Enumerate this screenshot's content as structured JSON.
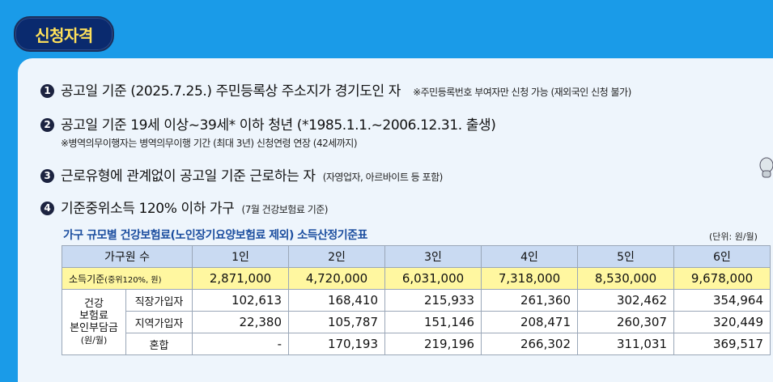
{
  "badge": "신청자격",
  "items": [
    {
      "num": "1",
      "text": "공고일 기준 (2025.7.25.) 주민등록상 주소지가 경기도인 자",
      "note": "※주민등록번호 부여자만 신청 가능 (재외국인 신청 불가)"
    },
    {
      "num": "2",
      "text": "공고일 기준 19세 이상~39세* 이하 청년 (*1985.1.1.~2006.12.31. 출생)",
      "sub": "※병역의무이행자는 병역의무이행 기간 (최대 3년) 신청연령 연장 (42세까지)"
    },
    {
      "num": "3",
      "text": "근로유형에 관계없이 공고일 기준 근로하는 자",
      "note": "(자영업자, 아르바이트 등 포함)"
    },
    {
      "num": "4",
      "text": "기준중위소득 120% 이하 가구",
      "note": "(7월 건강보험료 기준)"
    }
  ],
  "table": {
    "title": "가구 규모별 건강보험료(노인장기요양보험료 제외) 소득산정기준표",
    "unit": "(단위: 원/월)",
    "header": [
      "가구원 수",
      "1인",
      "2인",
      "3인",
      "4인",
      "5인",
      "6인"
    ],
    "income": {
      "label": "소득기준",
      "label_small": "(중위120%, 원)",
      "values": [
        "2,871,000",
        "4,720,000",
        "6,031,000",
        "7,318,000",
        "8,530,000",
        "9,678,000"
      ]
    },
    "group_label": [
      "건강",
      "보험료",
      "본인부담금"
    ],
    "group_unit": "(원/월)",
    "rows": [
      {
        "label": "직장가입자",
        "values": [
          "102,613",
          "168,410",
          "215,933",
          "261,360",
          "302,462",
          "354,964"
        ]
      },
      {
        "label": "지역가입자",
        "values": [
          "22,380",
          "105,787",
          "151,146",
          "208,471",
          "260,307",
          "320,449"
        ]
      },
      {
        "label": "혼합",
        "values": [
          "-",
          "170,193",
          "219,196",
          "266,302",
          "311,031",
          "369,517"
        ]
      }
    ]
  }
}
